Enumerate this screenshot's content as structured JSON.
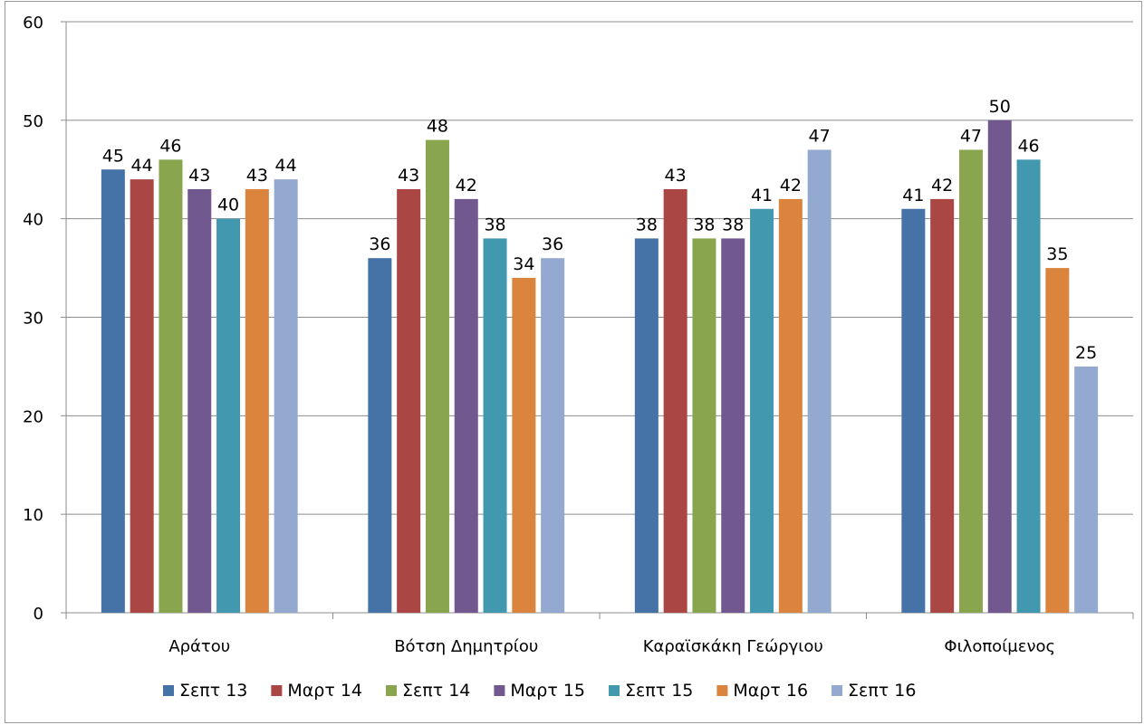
{
  "chart_data": {
    "type": "bar",
    "categories": [
      "Αράτου",
      "Βότση Δημητρίου",
      "Καραϊσκάκη Γεώργιου",
      "Φιλοποίμενος"
    ],
    "series": [
      {
        "name": "Σεπτ 13",
        "color": "#4572A7",
        "values": [
          45,
          36,
          38,
          41
        ],
        "labels": [
          "45",
          "36",
          "38",
          "41"
        ]
      },
      {
        "name": "Μαρτ 14",
        "color": "#AA4643",
        "values": [
          44,
          43,
          43,
          42
        ],
        "labels": [
          "44",
          "43",
          "43",
          "42"
        ]
      },
      {
        "name": "Σεπτ 14",
        "color": "#89A54E",
        "values": [
          46,
          48,
          38,
          47
        ],
        "labels": [
          "46",
          "48",
          "38",
          "47"
        ]
      },
      {
        "name": "Μαρτ 15",
        "color": "#71588F",
        "values": [
          43,
          42,
          38,
          50
        ],
        "labels": [
          "43",
          "42",
          "38",
          "50"
        ]
      },
      {
        "name": "Σεπτ 15",
        "color": "#4198AF",
        "values": [
          40,
          38,
          41,
          46
        ],
        "labels": [
          "40",
          "38",
          "41",
          "46"
        ]
      },
      {
        "name": "Μαρτ 16",
        "color": "#DB843D",
        "values": [
          43,
          34,
          42,
          35
        ],
        "labels": [
          "43",
          "34",
          "42",
          "35"
        ]
      },
      {
        "name": "Σεπτ 16",
        "color": "#93A9CF",
        "values": [
          44,
          36,
          47,
          25
        ],
        "labels": [
          "44",
          "36",
          "47",
          "25"
        ]
      }
    ],
    "yticks": [
      "0",
      "10",
      "20",
      "30",
      "40",
      "50",
      "60"
    ],
    "ylim": [
      0,
      60
    ],
    "grid": true,
    "legend": "bottom"
  }
}
